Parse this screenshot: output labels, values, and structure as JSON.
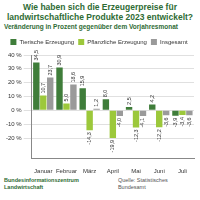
{
  "chart_data": {
    "type": "bar",
    "title": "Wie haben sich die Erzeugerpreise für landwirtschaftliche Produkte 2023 entwickelt?",
    "subtitle": "Veränderung in Prozent gegenüber dem Vorjahresmonat",
    "categories": [
      "Januar",
      "Februar",
      "März",
      "April",
      "Mai",
      "Juni",
      "Juli"
    ],
    "series": [
      {
        "name": "Tierische Erzeugung",
        "color": "#3f7d3a",
        "values": [
          34.5,
          30.9,
          15.9,
          8.0,
          2.5,
          4.2,
          -3.9
        ],
        "value_labels": [
          "34,5",
          "30,9",
          "15,9",
          "8,0",
          "2,5",
          "4,2",
          "-3,9"
        ]
      },
      {
        "name": "Pflanzliche Erzeugung",
        "color": "#9cc83b",
        "values": [
          10.7,
          5.0,
          -14.3,
          -19.9,
          -12.3,
          -12.2,
          -3.4
        ],
        "value_labels": [
          "10,7",
          "5,0",
          "-14,3",
          "-19,9",
          "-12,3",
          "-12,2",
          "-3,4"
        ]
      },
      {
        "name": "Insgesamt",
        "color": "#9a9a9a",
        "values": [
          23.7,
          18.6,
          1.2,
          -4.0,
          -4.1,
          -3.6,
          -3.6
        ],
        "value_labels": [
          "23,7",
          "18,6",
          "1,2",
          "-4,0",
          "-4,1",
          "-3,6",
          "-3,6"
        ]
      }
    ],
    "ylim": [
      -35,
      40
    ],
    "yticks": [
      {
        "value": -20,
        "label": "-20 %"
      },
      {
        "value": -10,
        "label": "-10 %"
      },
      {
        "value": 0,
        "label": "0 %"
      },
      {
        "value": 10,
        "label": "10 %"
      },
      {
        "value": 20,
        "label": "20 %"
      },
      {
        "value": 30,
        "label": "30 %"
      },
      {
        "value": 40,
        "label": "40 %"
      }
    ],
    "grid": true,
    "legend": "top",
    "data_labels": true,
    "source": "Quelle: Statistisches Bundesamt",
    "publisher": "Bundesinformationszentrum Landwirtschaft"
  }
}
